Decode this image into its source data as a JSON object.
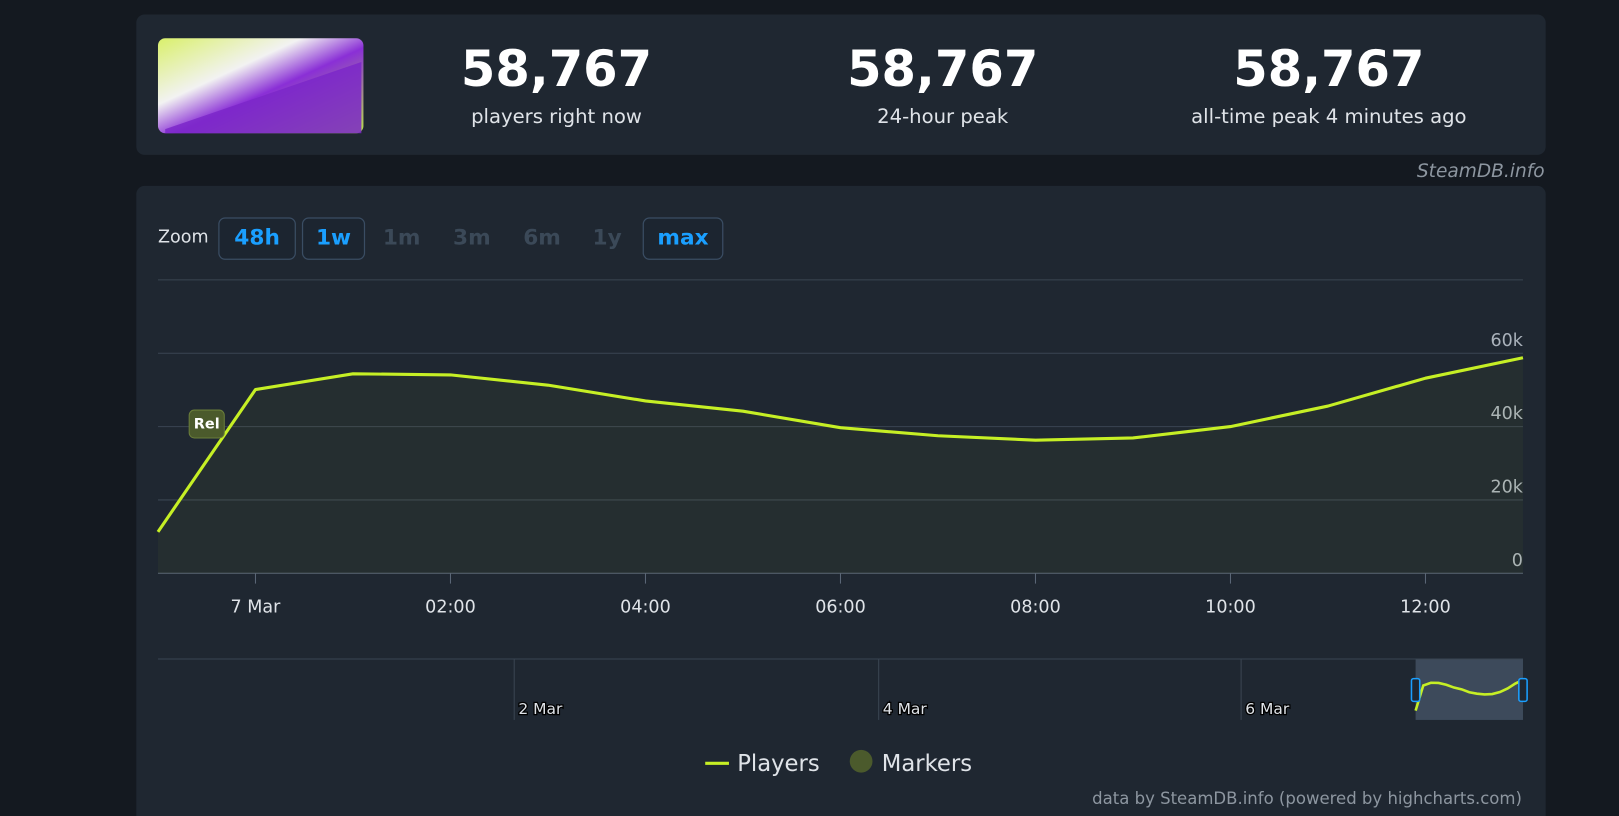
{
  "stats": [
    {
      "value": "58,767",
      "label": "players right now"
    },
    {
      "value": "58,767",
      "label": "24-hour peak"
    },
    {
      "value": "58,767",
      "label": "all-time peak 4 minutes ago"
    }
  ],
  "watermark": "SteamDB.info",
  "zoom": {
    "label": "Zoom",
    "options": [
      {
        "label": "48h",
        "enabled": true
      },
      {
        "label": "1w",
        "enabled": true
      },
      {
        "label": "1m",
        "enabled": false
      },
      {
        "label": "3m",
        "enabled": false
      },
      {
        "label": "6m",
        "enabled": false
      },
      {
        "label": "1y",
        "enabled": false
      },
      {
        "label": "max",
        "enabled": true
      }
    ]
  },
  "chart_data": {
    "type": "line",
    "x": [
      -1,
      0,
      1,
      2,
      3,
      4,
      5,
      6,
      7,
      8,
      9,
      10,
      11,
      12,
      13
    ],
    "series": [
      {
        "name": "Players",
        "color": "#c6ef25",
        "values": [
          11300,
          50100,
          54400,
          54100,
          51300,
          47000,
          44200,
          39700,
          37500,
          36300,
          36900,
          40000,
          45600,
          53200,
          58767
        ]
      }
    ],
    "xlim": [
      -1,
      13
    ],
    "xticks": [
      {
        "value": 0,
        "label": "7 Mar"
      },
      {
        "value": 2,
        "label": "02:00"
      },
      {
        "value": 4,
        "label": "04:00"
      },
      {
        "value": 6,
        "label": "06:00"
      },
      {
        "value": 8,
        "label": "08:00"
      },
      {
        "value": 10,
        "label": "10:00"
      },
      {
        "value": 12,
        "label": "12:00"
      }
    ],
    "ylim": [
      0,
      80000
    ],
    "yticks": [
      0,
      {
        "value": 20000,
        "label": "20k"
      },
      {
        "value": 40000,
        "label": "40k"
      },
      {
        "value": 60000,
        "label": "60k"
      }
    ],
    "grid": true,
    "flag": {
      "x": -0.5,
      "label": "Rel"
    },
    "legend": {
      "markers_label": "Markers",
      "markers_color": "#4b5a2c"
    },
    "navigator": {
      "labels": [
        "2 Mar",
        "4 Mar",
        "6 Mar"
      ]
    },
    "credits": "data by SteamDB.info (powered by highcharts.com)"
  }
}
